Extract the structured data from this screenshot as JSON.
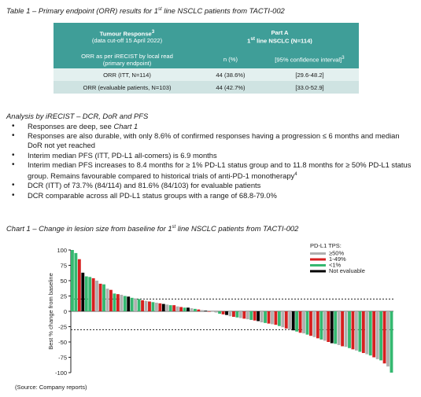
{
  "table_caption": {
    "prefix": "Table 1 – Primary endpoint (ORR) results for 1",
    "sup": "st",
    "suffix": " line NSCLC patients from TACTI-002"
  },
  "table": {
    "col1_header": {
      "line1": "Tumour Response",
      "line1_sup": "3",
      "line2": "(data cut-off 15 April 2022)"
    },
    "col2_header": {
      "line1": "Part A",
      "line2_prefix": "1",
      "line2_sup": "st",
      "line2_suffix": " line NSCLC (N=114)"
    },
    "subheader": {
      "left_line1": "ORR as per iRECIST by local read",
      "left_line2": "(primary endpoint)",
      "mid": "n (%)",
      "right": "[95% confidence interval]",
      "right_sup": "3"
    },
    "rows": [
      {
        "label": "ORR (ITT, N=114)",
        "n": "44 (38.6%)",
        "ci": "[29.6-48.2]"
      },
      {
        "label": "ORR (evaluable patients, N=103)",
        "n": "44 (42.7%)",
        "ci": "[33.0-52.9]"
      }
    ]
  },
  "analysis_title": "Analysis by iRECIST – DCR, DoR and PFS",
  "bullets": [
    {
      "text": "Responses are deep, see ",
      "italic": "Chart 1"
    },
    {
      "text": "Responses are also durable, with only 8.6% of confirmed responses having a progression ≤ 6 months and median DoR not yet reached"
    },
    {
      "text": "Interim median PFS (ITT, PD-L1 all-comers) is 6.9 months"
    },
    {
      "text": "Interim median PFS increases to 8.4 months for ≥ 1% PD-L1 status group and to 11.8 months for ≥ 50% PD-L1 status group. Remains favourable compared to historical trials of anti-PD-1 monotherapy",
      "sup": "4"
    },
    {
      "text": "DCR (ITT) of 73.7% (84/114) and 81.6% (84/103) for evaluable patients"
    },
    {
      "text": "DCR comparable across all PD-L1 status groups with a range of 68.8-79.0%"
    }
  ],
  "chart_caption": {
    "prefix": "Chart 1 – Change in lesion size from baseline for 1",
    "sup": "st",
    "suffix": " line NSCLC patients from TACTI-002"
  },
  "chart_data": {
    "type": "bar",
    "ylabel": "Best % change from baseline",
    "ylim": [
      -100,
      100
    ],
    "yticks": [
      "100",
      "75",
      "50",
      "25",
      "0",
      "-25",
      "-50",
      "-75",
      "-100"
    ],
    "reference_lines": [
      20,
      -30
    ],
    "legend_title": "PD-L1 TPS:",
    "legend_position": "top-right",
    "series": [
      {
        "name": "≥50%",
        "color": "#b0b0b0"
      },
      {
        "name": "1-49%",
        "color": "#d62020"
      },
      {
        "name": "<1%",
        "color": "#35b870"
      },
      {
        "name": "Not evaluable",
        "color": "#000000"
      }
    ],
    "values": [
      100,
      95,
      85,
      63,
      57,
      56,
      54,
      50,
      45,
      44,
      37,
      35,
      29,
      28,
      27,
      25,
      24,
      22,
      21,
      20,
      18,
      17,
      16,
      15,
      14,
      13,
      12,
      11,
      10,
      10,
      8,
      7,
      6,
      6,
      5,
      4,
      3,
      2,
      1,
      0,
      0,
      -2,
      -4,
      -5,
      -6,
      -8,
      -9,
      -10,
      -11,
      -12,
      -13,
      -14,
      -15,
      -16,
      -18,
      -19,
      -20,
      -21,
      -22,
      -24,
      -26,
      -28,
      -30,
      -31,
      -33,
      -35,
      -36,
      -38,
      -40,
      -42,
      -44,
      -46,
      -48,
      -50,
      -52,
      -53,
      -55,
      -57,
      -58,
      -60,
      -62,
      -64,
      -66,
      -68,
      -70,
      -72,
      -75,
      -78,
      -80,
      -85,
      -90,
      -100
    ],
    "groups": [
      "green",
      "green",
      "red",
      "black",
      "green",
      "green",
      "red",
      "gray",
      "red",
      "green",
      "gray",
      "red",
      "green",
      "red",
      "gray",
      "green",
      "black",
      "green",
      "gray",
      "green",
      "red",
      "gray",
      "red",
      "green",
      "gray",
      "red",
      "black",
      "gray",
      "green",
      "red",
      "gray",
      "red",
      "green",
      "black",
      "gray",
      "green",
      "red",
      "gray",
      "black",
      "red",
      "gray",
      "gray",
      "green",
      "red",
      "black",
      "gray",
      "red",
      "green",
      "gray",
      "red",
      "gray",
      "green",
      "red",
      "black",
      "gray",
      "green",
      "red",
      "gray",
      "red",
      "green",
      "gray",
      "red",
      "gray",
      "black",
      "green",
      "red",
      "gray",
      "green",
      "red",
      "gray",
      "red",
      "green",
      "gray",
      "red",
      "black",
      "green",
      "gray",
      "red",
      "gray",
      "green",
      "red",
      "gray",
      "green",
      "red",
      "gray",
      "green",
      "red",
      "gray",
      "green",
      "red",
      "gray",
      "green"
    ]
  },
  "source_note": "(Source: Company reports)"
}
